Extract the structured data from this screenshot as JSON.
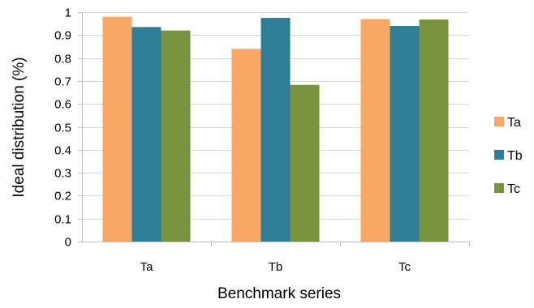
{
  "chart_data": {
    "type": "bar",
    "title": "",
    "xlabel": "Benchmark series",
    "ylabel": "Ideal distribution (%)",
    "categories": [
      "Ta",
      "Tb",
      "Tc"
    ],
    "ylim": [
      0,
      1
    ],
    "yticks": [
      "0",
      "0.1",
      "0.2",
      "0.3",
      "0.4",
      "0.5",
      "0.6",
      "0.7",
      "0.8",
      "0.9",
      "1"
    ],
    "grid": true,
    "legend_position": "right",
    "series": [
      {
        "name": "Ta",
        "color": "#f9a765",
        "values": [
          0.98,
          0.84,
          0.97
        ]
      },
      {
        "name": "Tb",
        "color": "#2e7e98",
        "values": [
          0.935,
          0.975,
          0.94
        ]
      },
      {
        "name": "Tc",
        "color": "#77933c",
        "values": [
          0.92,
          0.683,
          0.968
        ]
      }
    ]
  }
}
